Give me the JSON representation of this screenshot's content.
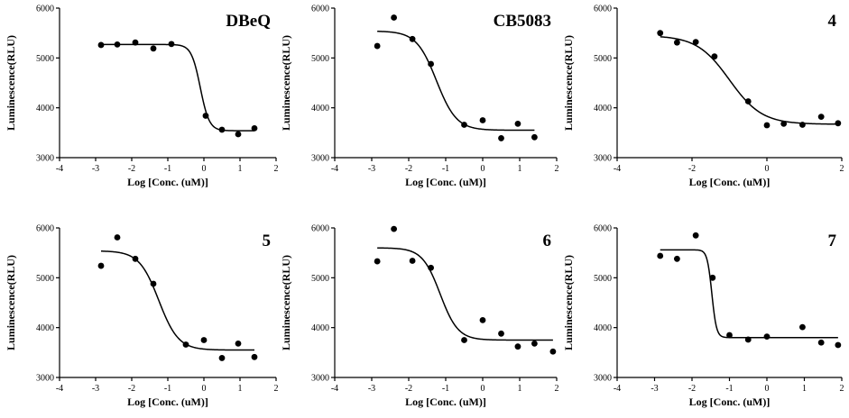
{
  "figure": {
    "panel_count": 6
  },
  "chart_data": [
    {
      "type": "scatter",
      "title": "DBeQ",
      "xlabel": "Log [Conc. (uM)]",
      "ylabel": "Luminescence(RLU)",
      "xlim": [
        -4,
        2
      ],
      "ylim": [
        3000,
        6000
      ],
      "xticks": [
        -4,
        -3,
        -2,
        -1,
        0,
        1,
        2
      ],
      "yticks": [
        3000,
        4000,
        5000,
        6000
      ],
      "x": [
        -2.85,
        -2.4,
        -1.9,
        -1.4,
        -0.9,
        0.05,
        0.5,
        0.95,
        1.4
      ],
      "y": [
        5260,
        5270,
        5310,
        5190,
        5280,
        3840,
        3560,
        3470,
        3590
      ],
      "curve": {
        "top": 5270,
        "bottom": 3540,
        "ec50_log": -0.1,
        "hill": 3.5
      }
    },
    {
      "type": "scatter",
      "title": "CB5083",
      "xlabel": "Log [Conc. (uM)]",
      "ylabel": "Luminescence(RLU)",
      "xlim": [
        -4,
        2
      ],
      "ylim": [
        3000,
        6000
      ],
      "xticks": [
        -4,
        -3,
        -2,
        -1,
        0,
        1,
        2
      ],
      "yticks": [
        3000,
        4000,
        5000,
        6000
      ],
      "x": [
        -2.85,
        -2.4,
        -1.9,
        -1.4,
        -0.5,
        0.0,
        0.5,
        0.95,
        1.4
      ],
      "y": [
        5240,
        5810,
        5380,
        4880,
        3660,
        3750,
        3390,
        3680,
        3410
      ],
      "curve": {
        "top": 5540,
        "bottom": 3550,
        "ec50_log": -1.25,
        "hill": 1.6
      }
    },
    {
      "type": "scatter",
      "title": "4",
      "xlabel": "Log [Conc. (uM)]",
      "ylabel": "Luminescence(RLU)",
      "xlim": [
        -4,
        2
      ],
      "ylim": [
        3000,
        6000
      ],
      "xticks": [
        -4,
        -2,
        0,
        2
      ],
      "yticks": [
        3000,
        4000,
        5000,
        6000
      ],
      "x": [
        -2.85,
        -2.4,
        -1.9,
        -1.4,
        -0.5,
        0.0,
        0.45,
        0.95,
        1.45,
        1.9
      ],
      "y": [
        5500,
        5310,
        5320,
        5030,
        4130,
        3650,
        3680,
        3660,
        3820,
        3690
      ],
      "curve": {
        "top": 5450,
        "bottom": 3670,
        "ec50_log": -1.0,
        "hill": 1.0
      }
    },
    {
      "type": "scatter",
      "title": "5",
      "xlabel": "Log [Conc. (uM)]",
      "ylabel": "Luminescence(RLU)",
      "xlim": [
        -4,
        2
      ],
      "ylim": [
        3000,
        6000
      ],
      "xticks": [
        -4,
        -3,
        -2,
        -1,
        0,
        1,
        2
      ],
      "yticks": [
        3000,
        4000,
        5000,
        6000
      ],
      "x": [
        -2.85,
        -2.4,
        -1.9,
        -1.4,
        -0.5,
        0.0,
        0.5,
        0.95,
        1.4
      ],
      "y": [
        5240,
        5810,
        5380,
        4880,
        3660,
        3750,
        3390,
        3680,
        3410
      ],
      "curve": {
        "top": 5540,
        "bottom": 3550,
        "ec50_log": -1.25,
        "hill": 1.6
      }
    },
    {
      "type": "scatter",
      "title": "6",
      "xlabel": "Log [Conc. (uM)]",
      "ylabel": "Luminescence(RLU)",
      "xlim": [
        -4,
        2
      ],
      "ylim": [
        3000,
        6000
      ],
      "xticks": [
        -4,
        -3,
        -2,
        -1,
        0,
        1,
        2
      ],
      "yticks": [
        3000,
        4000,
        5000,
        6000
      ],
      "x": [
        -2.85,
        -2.4,
        -1.9,
        -1.4,
        -0.5,
        0.0,
        0.5,
        0.95,
        1.4,
        1.9
      ],
      "y": [
        5330,
        5980,
        5340,
        5200,
        3750,
        4150,
        3880,
        3620,
        3680,
        3520
      ],
      "curve": {
        "top": 5600,
        "bottom": 3750,
        "ec50_log": -1.15,
        "hill": 1.8
      }
    },
    {
      "type": "scatter",
      "title": "7",
      "xlabel": "Log [Conc. (uM)]",
      "ylabel": "Luminescence(RLU)",
      "xlim": [
        -4,
        2
      ],
      "ylim": [
        3000,
        6000
      ],
      "xticks": [
        -4,
        -3,
        -2,
        -1,
        0,
        1,
        2
      ],
      "yticks": [
        3000,
        4000,
        5000,
        6000
      ],
      "x": [
        -2.85,
        -2.4,
        -1.9,
        -1.45,
        -1.0,
        -0.5,
        0.0,
        0.95,
        1.45,
        1.9
      ],
      "y": [
        5440,
        5380,
        5850,
        5000,
        3850,
        3760,
        3820,
        4010,
        3700,
        3650
      ],
      "curve": {
        "top": 5560,
        "bottom": 3800,
        "ec50_log": -1.47,
        "hill": 7.0
      }
    }
  ]
}
